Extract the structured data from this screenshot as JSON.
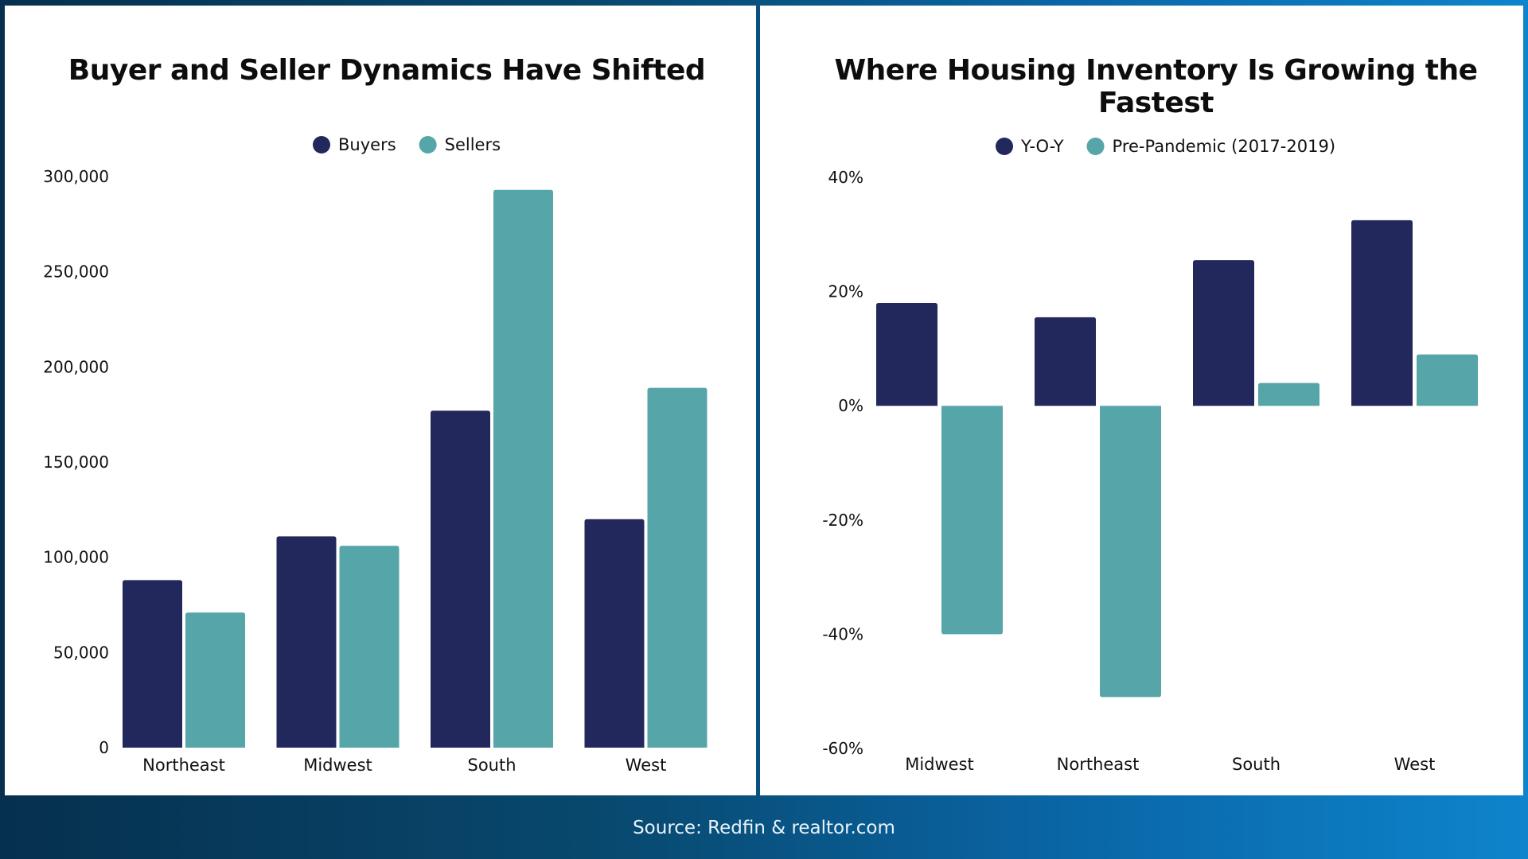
{
  "colors": {
    "buyers": "#22275c",
    "sellers": "#55a5a9",
    "yoy": "#22275c",
    "pre_pandemic": "#55a5a9"
  },
  "footer": {
    "source": "Source: Redfin & realtor.com"
  },
  "chart_data": [
    {
      "type": "bar",
      "title": "Buyer and Seller Dynamics Have Shifted",
      "xlabel": "",
      "ylabel": "",
      "categories": [
        "Northeast",
        "Midwest",
        "South",
        "West"
      ],
      "series": [
        {
          "name": "Buyers",
          "values": [
            88000,
            111000,
            177000,
            120000
          ]
        },
        {
          "name": "Sellers",
          "values": [
            71000,
            106000,
            293000,
            189000
          ]
        }
      ],
      "ylim": [
        0,
        300000
      ],
      "yticks": [
        0,
        50000,
        100000,
        150000,
        200000,
        250000,
        300000
      ],
      "ytick_labels": [
        "0",
        "50,000",
        "100,000",
        "150,000",
        "200,000",
        "250,000",
        "300,000"
      ],
      "legend": "top-center",
      "grid": false
    },
    {
      "type": "bar",
      "title": "Where Housing Inventory Is Growing the Fastest",
      "xlabel": "",
      "ylabel": "",
      "categories": [
        "Midwest",
        "Northeast",
        "South",
        "West"
      ],
      "series": [
        {
          "name": "Y-O-Y",
          "values": [
            18,
            15.5,
            25.5,
            32.5
          ]
        },
        {
          "name": "Pre-Pandemic (2017-2019)",
          "values": [
            -40,
            -51,
            4,
            9
          ]
        }
      ],
      "ylim": [
        -60,
        40
      ],
      "yticks": [
        40,
        20,
        0,
        -20,
        -40,
        -60
      ],
      "ytick_labels": [
        "40%",
        "20%",
        "0%",
        "-20%",
        "-40%",
        "-60%"
      ],
      "legend": "top-center",
      "grid": false
    }
  ]
}
